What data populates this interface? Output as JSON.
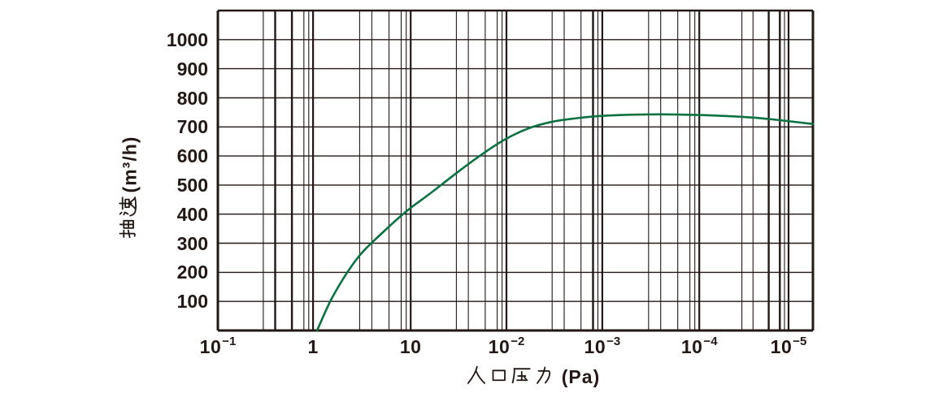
{
  "page": {
    "background": "#ffffff",
    "ink_color": "#231815"
  },
  "chart_data": {
    "type": "line",
    "title": "",
    "xlabel": "入口压力（Pa）",
    "xlabel_chars": [
      "入",
      "口",
      "压",
      "力"
    ],
    "xlabel_unit": "(Pa)",
    "ylabel": "抽速(m³/h)",
    "ylabel_chars": [
      "抽",
      "速"
    ],
    "ylabel_unit": "(m³/h)",
    "x_axis": {
      "scale": "log",
      "tick_labels": [
        "10^-1",
        "1",
        "10",
        "10^-2",
        "10^-3",
        "10^-4",
        "10^-5"
      ],
      "ticks": [
        {
          "base": "10",
          "exp": "-1",
          "u": 0.0
        },
        {
          "base": "1",
          "exp": "",
          "u": 0.16
        },
        {
          "base": "10",
          "exp": "",
          "u": 0.324
        },
        {
          "base": "10",
          "exp": "-2",
          "u": 0.485
        },
        {
          "base": "10",
          "exp": "-3",
          "u": 0.646
        },
        {
          "base": "10",
          "exp": "-4",
          "u": 0.809
        },
        {
          "base": "10",
          "exp": "-5",
          "u": 0.959
        }
      ],
      "minor_log_values": [
        3,
        4,
        6,
        8,
        9
      ],
      "bold_minors": [
        [
          0,
          4
        ],
        [
          0,
          6
        ],
        [
          3,
          8
        ],
        [
          5,
          6
        ],
        [
          5,
          8
        ]
      ],
      "grid": true
    },
    "y_axis": {
      "ticks": [
        100,
        200,
        300,
        400,
        500,
        600,
        700,
        800,
        900,
        1000
      ],
      "range": [
        0,
        1100
      ],
      "grid": true
    },
    "series": [
      {
        "id": "pumping-speed",
        "color": "#0a7240",
        "points_u_v": [
          [
            0.1667,
            0
          ],
          [
            0.194,
            120
          ],
          [
            0.235,
            250
          ],
          [
            0.276,
            335
          ],
          [
            0.3169,
            410
          ],
          [
            0.3579,
            473
          ],
          [
            0.3989,
            538
          ],
          [
            0.4399,
            600
          ],
          [
            0.4809,
            655
          ],
          [
            0.5219,
            695
          ],
          [
            0.5628,
            718
          ],
          [
            0.6038,
            730
          ],
          [
            0.6448,
            738
          ],
          [
            0.6995,
            742
          ],
          [
            0.7609,
            743
          ],
          [
            0.8224,
            740
          ],
          [
            0.8838,
            734
          ],
          [
            0.9317,
            726
          ],
          [
            0.9659,
            718
          ],
          [
            1.0,
            710
          ]
        ]
      }
    ],
    "legend": {
      "visible": false
    }
  }
}
